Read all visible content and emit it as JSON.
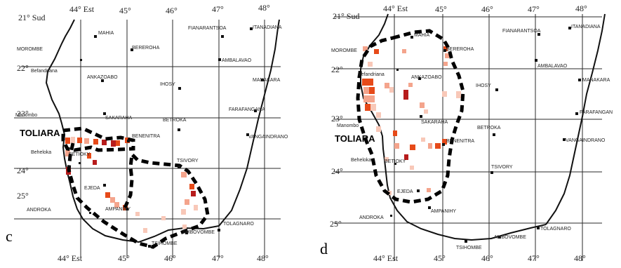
{
  "colors": {
    "cell_dark": "#b71c1c",
    "cell_mid": "#e64a19",
    "cell_light": "#f4a48c",
    "cell_pale": "#f8c8b8"
  },
  "panels": [
    {
      "letter": "c",
      "lon_labels_top": [
        "44° Est",
        "45°",
        "46°",
        "47°",
        "48°"
      ],
      "lon_labels_bottom": [
        "44° Est",
        "45°",
        "46°",
        "47°",
        "48°"
      ],
      "lat_labels": [
        "21° Sud",
        "22°",
        "23°",
        "24°",
        "25°"
      ],
      "region_label": "TOLIARA",
      "towns": [
        "MAHIA",
        "BEREROHA",
        "FIANARANTSOA",
        "ITANADIANA",
        "MOROMBE",
        "Befandriana",
        "ANKAZOABO",
        "AMBALAVAO",
        "IHOSY",
        "MANAKARA",
        "SAKARAHA",
        "FARAFANGANA",
        "Manombo",
        "BETROKA",
        "BENENITRA",
        "VANGAINDRANO",
        "Beheloka",
        "BETIOKY",
        "TSIVORY",
        "EJEDA",
        "ANDROKA",
        "AMPANIHY",
        "TOLAGNARO",
        "AMBOVOMBE",
        "TSIHOMBE"
      ]
    },
    {
      "letter": "d",
      "lon_labels_top": [
        "44° Est",
        "45°",
        "46°",
        "47°",
        "48°"
      ],
      "lon_labels_bottom": [
        "44° Est",
        "45°",
        "46°",
        "47°",
        "48°"
      ],
      "lat_labels": [
        "21° Sud",
        "22°",
        "23°",
        "24°",
        "25°"
      ],
      "region_label": "TOLIARA",
      "towns": [
        "MAHIA",
        "FIANARANTSOA",
        "ITANADIANA",
        "MOROMBE",
        "BEREROHA",
        "Befandriana",
        "ANKAZOABO",
        "IHOSY",
        "AMBALAVAO",
        "MANAKARA",
        "FARAFANGAN",
        "Manombo",
        "SAKARAHA",
        "BETROKA",
        "VANGAINDRANO",
        "BENENITRA",
        "Beheloka",
        "BETIOKY",
        "TSIVORY",
        "EJEDA",
        "AMPANIHY",
        "ANDROKA",
        "TOLAGNARO",
        "TSIHOMBE",
        "AMBOVOMBE"
      ]
    }
  ]
}
